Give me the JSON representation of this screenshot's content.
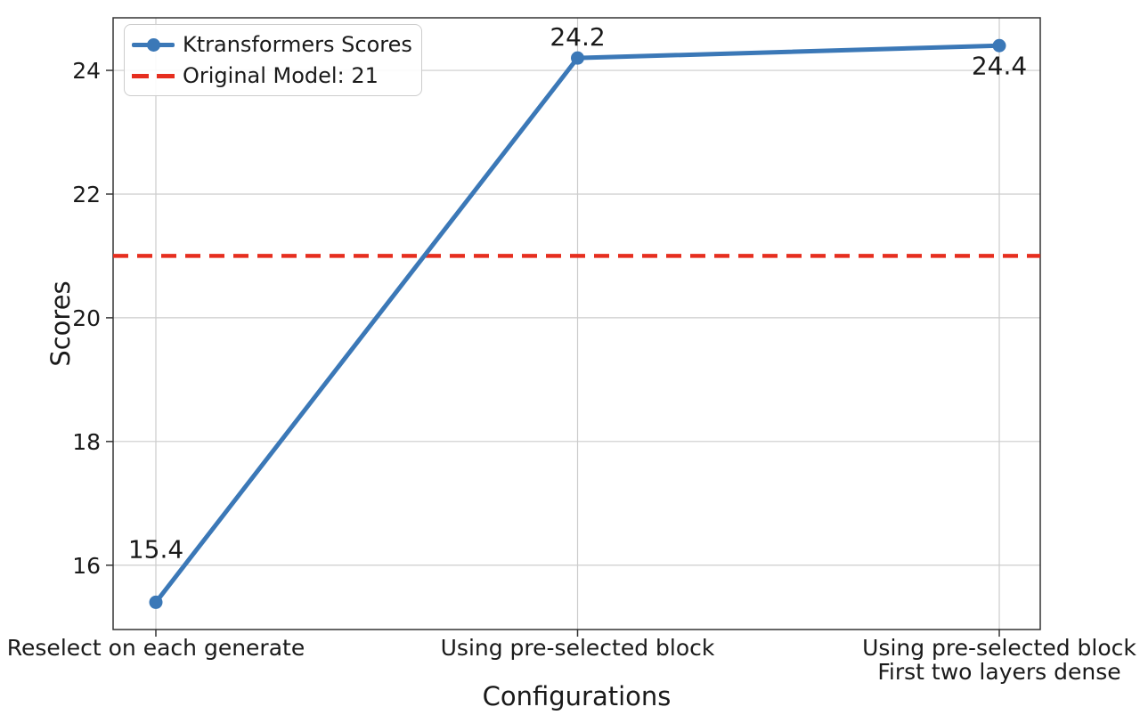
{
  "chart_data": {
    "type": "line",
    "title": "",
    "xlabel": "Configurations",
    "ylabel": "Scores",
    "categories": [
      "Reselect on each generate",
      "Using pre-selected block",
      "Using pre-selected block\nFirst two layers dense"
    ],
    "series": [
      {
        "name": "Ktransformers Scores",
        "values": [
          15.4,
          24.2,
          24.4
        ],
        "style": "solid",
        "marker": "circle"
      }
    ],
    "baseline": {
      "name": "Original Model: 21",
      "value": 21,
      "style": "dashed"
    },
    "point_labels": [
      "15.4",
      "24.2",
      "24.4"
    ],
    "yticks": [
      16,
      18,
      20,
      22,
      24
    ],
    "ylim": [
      14.96,
      24.85
    ],
    "grid": true,
    "legend_position": "upper-left",
    "legend": [
      {
        "label": "Ktransformers Scores",
        "style": "solid-with-marker"
      },
      {
        "label": "Original Model: 21",
        "style": "dashed"
      }
    ],
    "colors": {
      "series": "#3b78b7",
      "baseline": "#e62e1f",
      "grid": "#cccccc",
      "spine": "#333333",
      "text": "#1a1a1a"
    }
  }
}
